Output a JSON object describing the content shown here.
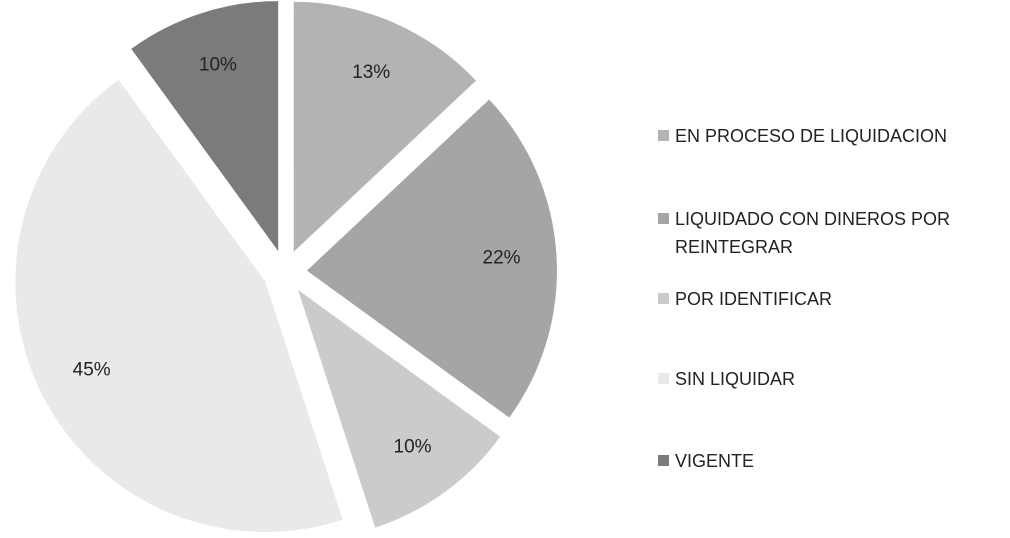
{
  "chart_data": {
    "type": "pie",
    "categories": [
      "EN PROCESO DE LIQUIDACION",
      "LIQUIDADO CON DINEROS POR REINTEGRAR",
      "POR IDENTIFICAR",
      "SIN LIQUIDAR",
      "VIGENTE"
    ],
    "values": [
      13,
      22,
      10,
      45,
      10
    ],
    "value_labels": [
      "13%",
      "22%",
      "10%",
      "45%",
      "10%"
    ],
    "colors": [
      "#b3b3b3",
      "#a5a5a5",
      "#cbcbcb",
      "#e9e9e9",
      "#7b7b7b"
    ],
    "legend": "right"
  }
}
